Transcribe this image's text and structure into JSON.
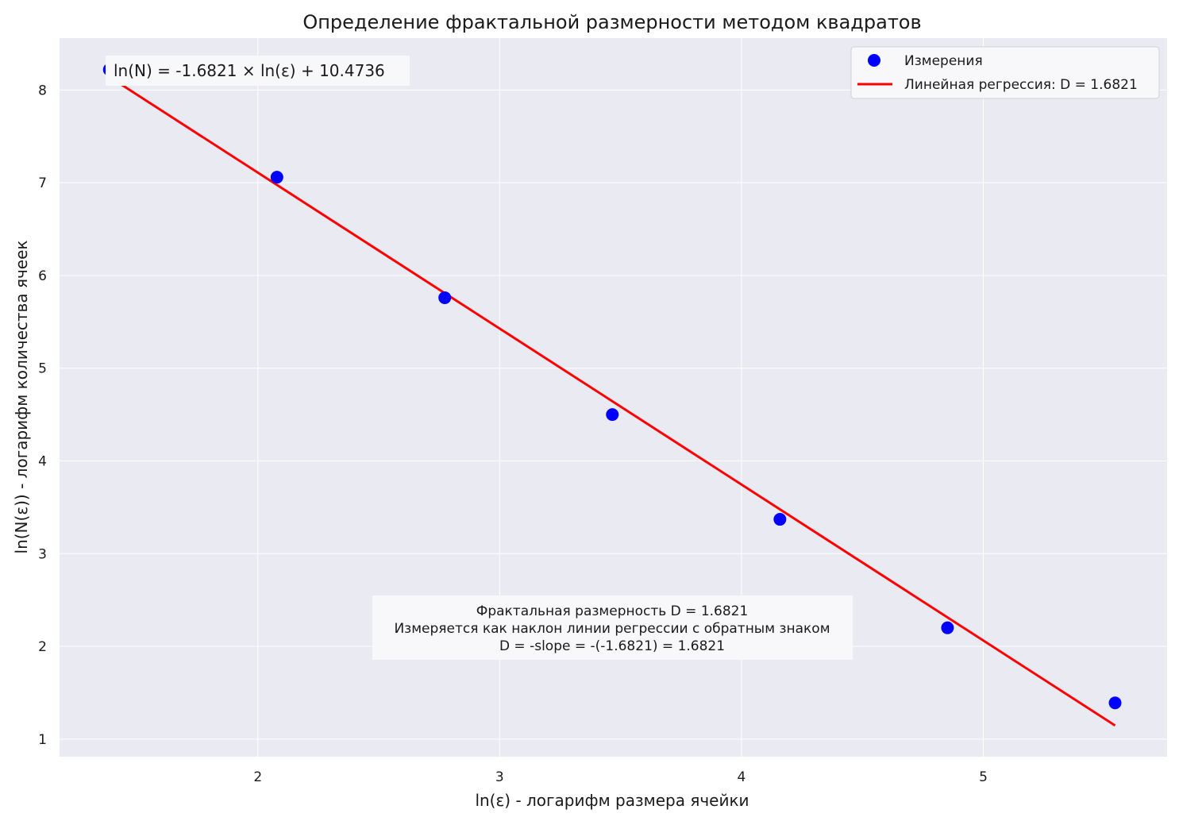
{
  "chart_data": {
    "type": "scatter",
    "title": "Определение фрактальной размерности методом квадратов",
    "xlabel": "ln(ε) - логарифм размера ячейки",
    "ylabel": "ln(N(ε)) - логарифм количества ячеек",
    "xlim": [
      1.18,
      5.76
    ],
    "ylim": [
      0.81,
      8.56
    ],
    "x_ticks": [
      2,
      3,
      4,
      5
    ],
    "y_ticks": [
      1,
      2,
      3,
      4,
      5,
      6,
      7,
      8
    ],
    "grid": true,
    "legend_position": "top-right",
    "series": [
      {
        "name": "Измерения",
        "kind": "scatter",
        "color": "#0000ff",
        "points": [
          {
            "x": 1.386,
            "y": 8.22
          },
          {
            "x": 2.079,
            "y": 7.06
          },
          {
            "x": 2.773,
            "y": 5.76
          },
          {
            "x": 3.466,
            "y": 4.5
          },
          {
            "x": 4.159,
            "y": 3.37
          },
          {
            "x": 4.852,
            "y": 2.2
          },
          {
            "x": 5.545,
            "y": 1.39
          }
        ]
      },
      {
        "name": "Линейная регрессия: D = 1.6821",
        "kind": "line",
        "color": "#ff0000",
        "slope": -1.6821,
        "intercept": 10.4736,
        "x_range": [
          1.386,
          5.545
        ]
      }
    ],
    "equation_annotation": "ln(N) = -1.6821 × ln(ε) + 10.4736",
    "info_annotation": [
      "Фрактальная размерность D = 1.6821",
      "Измеряется как наклон линии регрессии с обратным знаком",
      "D = -slope = -(-1.6821) = 1.6821"
    ],
    "colors": {
      "plot_background": "#eaeaf2",
      "grid": "#ffffff",
      "annotation_background": "#f8f8fa"
    }
  }
}
